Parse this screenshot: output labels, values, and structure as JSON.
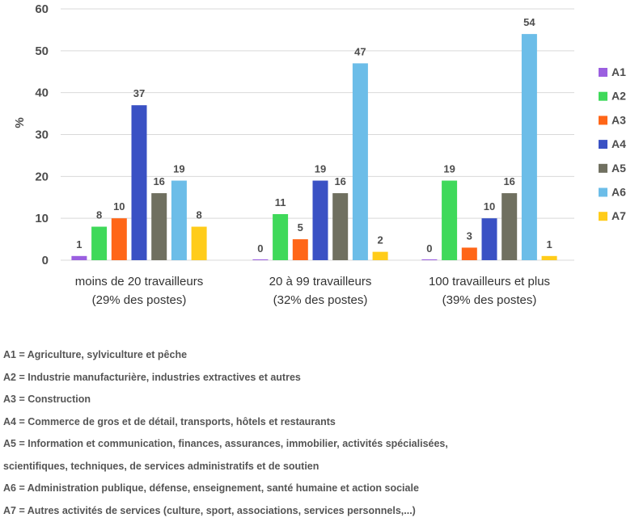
{
  "chart_data": {
    "type": "bar",
    "ylabel": "%",
    "ylim": [
      0,
      60
    ],
    "yticks": [
      0,
      10,
      20,
      30,
      40,
      50,
      60
    ],
    "grid": true,
    "legend_position": "right",
    "categories": [
      [
        "moins de 20 travailleurs",
        "(29% des postes)"
      ],
      [
        "20 à 99 travailleurs",
        "(32% des postes)"
      ],
      [
        "100 travailleurs et plus",
        "(39% des postes)"
      ]
    ],
    "series": [
      {
        "name": "A1",
        "color": "#9b5fe0",
        "values": [
          1,
          0,
          0
        ],
        "labels": [
          "1",
          "0",
          "0"
        ]
      },
      {
        "name": "A2",
        "color": "#3fd95a",
        "values": [
          8,
          11,
          19
        ],
        "labels": [
          "8",
          "11",
          "19"
        ]
      },
      {
        "name": "A3",
        "color": "#ff6618",
        "values": [
          10,
          5,
          3
        ],
        "labels": [
          "10",
          "5",
          "3"
        ]
      },
      {
        "name": "A4",
        "color": "#3a51c4",
        "values": [
          37,
          19,
          10
        ],
        "labels": [
          "37",
          "19",
          "10"
        ]
      },
      {
        "name": "A5",
        "color": "#707060",
        "values": [
          16,
          16,
          16
        ],
        "labels": [
          "16",
          "16",
          "16"
        ]
      },
      {
        "name": "A6",
        "color": "#6cbde8",
        "values": [
          19,
          47,
          54
        ],
        "labels": [
          "19",
          "47",
          "54"
        ]
      },
      {
        "name": "A7",
        "color": "#ffcc1a",
        "values": [
          8,
          2,
          1
        ],
        "labels": [
          "8",
          "2",
          "1"
        ]
      }
    ]
  },
  "notes": [
    "A1 = Agriculture, sylviculture et pêche",
    "A2 = Industrie manufacturière, industries extractives et autres",
    "A3 = Construction",
    "A4 = Commerce de gros et de détail, transports, hôtels et restaurants",
    "A5 = Information et communication, finances, assurances, immobilier, activités spécialisées,",
    "scientifiques, techniques, de services administratifs et de soutien",
    "A6 = Administration publique, défense, enseignement, santé humaine et action sociale",
    "A7 = Autres activités de services (culture, sport, associations, services personnels,...)"
  ]
}
